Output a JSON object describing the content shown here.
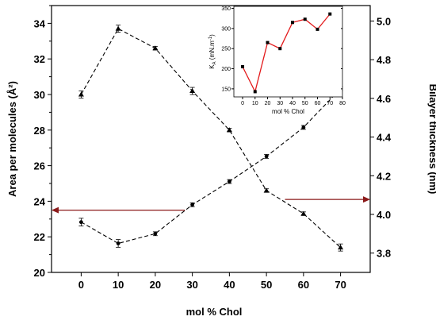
{
  "chart_data": [
    {
      "type": "line",
      "xlabel": "mol % Chol",
      "ylabel": "Area per molecules (Å²)",
      "y2label": "Bilayer thickness (nm)",
      "x_ticks": [
        "0",
        "10",
        "20",
        "30",
        "40",
        "50",
        "60",
        "70"
      ],
      "xlim": [
        -8,
        78
      ],
      "ylim": [
        20,
        35
      ],
      "y_ticks": [
        "20",
        "22",
        "24",
        "26",
        "28",
        "30",
        "32",
        "34"
      ],
      "y2lim": [
        3.7,
        5.08
      ],
      "y2_ticks": [
        "3.8",
        "4.0",
        "4.2",
        "4.4",
        "4.6",
        "4.8",
        "5.0"
      ],
      "grid": false,
      "series": [
        {
          "axis": "left",
          "marker": "triangle-up",
          "line": "dashed",
          "x": [
            0,
            10,
            20,
            30,
            40,
            50,
            60,
            70
          ],
          "values": [
            30.0,
            33.7,
            32.6,
            30.2,
            28.0,
            24.6,
            23.3,
            21.4
          ],
          "errors": [
            0.2,
            0.2,
            0.1,
            0.2,
            0.1,
            0.1,
            0.1,
            0.2
          ]
        },
        {
          "axis": "right",
          "marker": "circle",
          "line": "dashed",
          "x": [
            0,
            10,
            20,
            30,
            40,
            50,
            60,
            70
          ],
          "values": [
            3.96,
            3.85,
            3.9,
            4.05,
            4.17,
            4.3,
            4.45,
            4.65
          ],
          "errors": [
            0.02,
            0.02,
            0.01,
            0.01,
            0.01,
            0.01,
            0.01,
            0.01
          ]
        }
      ],
      "arrows": [
        {
          "direction": "left",
          "x_from": 28,
          "x_to": -8,
          "y": 23.5
        },
        {
          "direction": "right",
          "x_from": 55,
          "x_to": 78,
          "y": 24.1
        }
      ]
    },
    {
      "type": "line",
      "inset": true,
      "xlabel": "mol % Chol",
      "ylabel": "KA (mN.m⁻¹)",
      "ylabel_main": "K",
      "ylabel_sub": "A",
      "ylabel_rest": " (mN.m",
      "ylabel_sup": "-1",
      "ylabel_close": ")",
      "xlim": [
        -7,
        80
      ],
      "ylim": [
        130,
        355
      ],
      "x_ticks": [
        "0",
        "10",
        "20",
        "30",
        "40",
        "50",
        "60",
        "70",
        "80"
      ],
      "y_ticks": [
        "150",
        "200",
        "250",
        "300",
        "350"
      ],
      "line_color": "#e31a1c",
      "marker": "square",
      "x": [
        0,
        10,
        20,
        30,
        40,
        50,
        60,
        70
      ],
      "values": [
        205,
        143,
        265,
        250,
        315,
        323,
        298,
        336
      ]
    }
  ]
}
